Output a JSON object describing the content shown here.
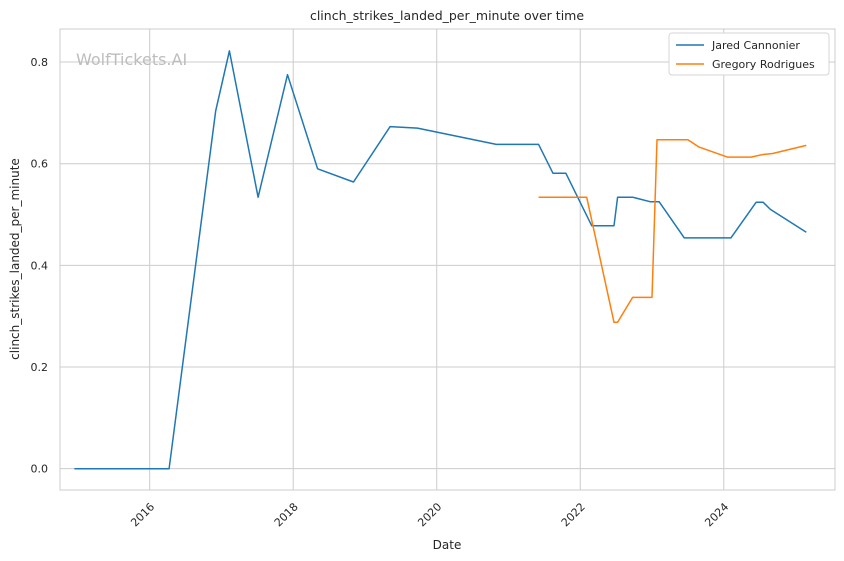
{
  "watermark": "WolfTickets.AI",
  "chart_data": {
    "type": "line",
    "title": "clinch_strikes_landed_per_minute over time",
    "xlabel": "Date",
    "ylabel": "clinch_strikes_landed_per_minute",
    "xlim": [
      2014.75,
      2025.55
    ],
    "ylim": [
      -0.042,
      0.865
    ],
    "x_ticks": [
      2016,
      2018,
      2020,
      2022,
      2024
    ],
    "x_tick_labels": [
      "2016",
      "2018",
      "2020",
      "2022",
      "2024"
    ],
    "y_ticks": [
      0.0,
      0.2,
      0.4,
      0.6,
      0.8
    ],
    "y_tick_labels": [
      "0.0",
      "0.2",
      "0.4",
      "0.6",
      "0.8"
    ],
    "grid": true,
    "legend_position": "top-right",
    "colors": {
      "Jared Cannonier": "#1f77b4",
      "Gregory Rodrigues": "#ff7f0e"
    },
    "series": [
      {
        "name": "Jared Cannonier",
        "color": "#1f77b4",
        "points": [
          [
            2014.95,
            0.0
          ],
          [
            2016.27,
            0.0
          ],
          [
            2016.92,
            0.704
          ],
          [
            2017.11,
            0.822
          ],
          [
            2017.51,
            0.534
          ],
          [
            2017.92,
            0.775
          ],
          [
            2018.34,
            0.59
          ],
          [
            2018.84,
            0.564
          ],
          [
            2019.35,
            0.673
          ],
          [
            2019.73,
            0.67
          ],
          [
            2020.83,
            0.638
          ],
          [
            2021.42,
            0.638
          ],
          [
            2021.62,
            0.581
          ],
          [
            2021.8,
            0.581
          ],
          [
            2022.16,
            0.478
          ],
          [
            2022.47,
            0.478
          ],
          [
            2022.52,
            0.534
          ],
          [
            2022.73,
            0.534
          ],
          [
            2022.98,
            0.525
          ],
          [
            2023.1,
            0.525
          ],
          [
            2023.45,
            0.454
          ],
          [
            2024.1,
            0.454
          ],
          [
            2024.45,
            0.524
          ],
          [
            2024.55,
            0.524
          ],
          [
            2024.65,
            0.51
          ],
          [
            2025.15,
            0.465
          ]
        ]
      },
      {
        "name": "Gregory Rodrigues",
        "color": "#ff7f0e",
        "points": [
          [
            2021.42,
            0.534
          ],
          [
            2022.09,
            0.534
          ],
          [
            2022.47,
            0.288
          ],
          [
            2022.52,
            0.288
          ],
          [
            2022.73,
            0.337
          ],
          [
            2023.0,
            0.337
          ],
          [
            2023.07,
            0.647
          ],
          [
            2023.5,
            0.647
          ],
          [
            2023.65,
            0.633
          ],
          [
            2024.05,
            0.613
          ],
          [
            2024.38,
            0.613
          ],
          [
            2024.55,
            0.618
          ],
          [
            2024.68,
            0.62
          ],
          [
            2025.15,
            0.636
          ]
        ]
      }
    ]
  }
}
